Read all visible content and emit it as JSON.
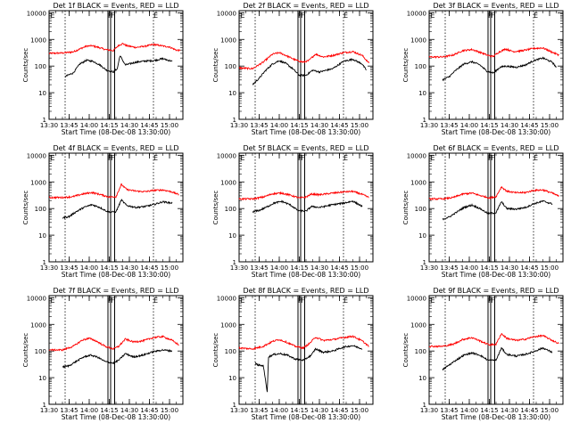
{
  "chart_data": {
    "type": "line",
    "layout": "3x3 grid",
    "x_range": [
      "13:30",
      "15:10"
    ],
    "x_ticks": [
      "13:30",
      "13:45",
      "14:00",
      "14:15",
      "14:30",
      "14:45",
      "15:00"
    ],
    "xlabel": "Start Time (08-Dec-08 13:30:00)",
    "ylabel": "Counts/sec",
    "y_scale": "log",
    "ylim": [
      1,
      12000
    ],
    "y_ticks": [
      "1",
      "10",
      "100",
      "1000",
      "10000"
    ],
    "series_colors": {
      "events": "#000000",
      "lld": "#ff0000"
    },
    "markers": {
      "dotted": [
        "13:42",
        "14:48"
      ],
      "solid": [
        "14:14",
        "14:16",
        "14:19"
      ],
      "labels": [
        {
          "text": "E",
          "at": "13:31"
        },
        {
          "text": "F",
          "at": "14:14"
        },
        {
          "text": "F",
          "at": "14:16"
        },
        {
          "text": "E",
          "at": "14:48"
        }
      ]
    },
    "panels": [
      {
        "title": "Det 1f BLACK = Events, RED = LLD",
        "lld": [
          [
            "13:30",
            300
          ],
          [
            "13:40",
            310
          ],
          [
            "13:48",
            340
          ],
          [
            "13:52",
            420
          ],
          [
            "13:58",
            560
          ],
          [
            "14:02",
            580
          ],
          [
            "14:07",
            500
          ],
          [
            "14:12",
            420
          ],
          [
            "14:18",
            380
          ],
          [
            "14:22",
            600
          ],
          [
            "14:25",
            700
          ],
          [
            "14:28",
            580
          ],
          [
            "14:35",
            500
          ],
          [
            "14:42",
            560
          ],
          [
            "14:48",
            650
          ],
          [
            "14:52",
            600
          ],
          [
            "15:00",
            520
          ],
          [
            "15:05",
            400
          ],
          [
            "15:08",
            380
          ]
        ],
        "events": [
          [
            "13:42",
            40
          ],
          [
            "13:44",
            45
          ],
          [
            "13:48",
            55
          ],
          [
            "13:53",
            120
          ],
          [
            "13:58",
            165
          ],
          [
            "14:03",
            150
          ],
          [
            "14:08",
            110
          ],
          [
            "14:13",
            70
          ],
          [
            "14:18",
            60
          ],
          [
            "14:21",
            80
          ],
          [
            "14:23",
            250
          ],
          [
            "14:27",
            110
          ],
          [
            "14:35",
            140
          ],
          [
            "14:42",
            155
          ],
          [
            "14:48",
            160
          ],
          [
            "14:55",
            190
          ],
          [
            "15:02",
            150
          ]
        ]
      },
      {
        "title": "Det 2f BLACK = Events, RED = LLD",
        "lld": [
          [
            "13:30",
            85
          ],
          [
            "13:40",
            80
          ],
          [
            "13:48",
            140
          ],
          [
            "13:55",
            280
          ],
          [
            "14:00",
            320
          ],
          [
            "14:05",
            250
          ],
          [
            "14:12",
            170
          ],
          [
            "14:18",
            140
          ],
          [
            "14:22",
            160
          ],
          [
            "14:27",
            280
          ],
          [
            "14:33",
            220
          ],
          [
            "14:40",
            250
          ],
          [
            "14:48",
            320
          ],
          [
            "14:55",
            350
          ],
          [
            "15:02",
            250
          ],
          [
            "15:07",
            130
          ]
        ],
        "events": [
          [
            "13:40",
            20
          ],
          [
            "13:45",
            35
          ],
          [
            "13:50",
            70
          ],
          [
            "13:55",
            120
          ],
          [
            "14:00",
            160
          ],
          [
            "14:05",
            125
          ],
          [
            "14:10",
            80
          ],
          [
            "14:15",
            45
          ],
          [
            "14:20",
            45
          ],
          [
            "14:25",
            70
          ],
          [
            "14:30",
            60
          ],
          [
            "14:40",
            80
          ],
          [
            "14:48",
            150
          ],
          [
            "14:55",
            180
          ],
          [
            "15:02",
            120
          ],
          [
            "15:05",
            70
          ]
        ]
      },
      {
        "title": "Det 3f BLACK = Events, RED = LLD",
        "lld": [
          [
            "13:30",
            220
          ],
          [
            "13:40",
            220
          ],
          [
            "13:48",
            260
          ],
          [
            "13:55",
            380
          ],
          [
            "14:02",
            420
          ],
          [
            "14:08",
            330
          ],
          [
            "14:14",
            250
          ],
          [
            "14:18",
            230
          ],
          [
            "14:22",
            330
          ],
          [
            "14:27",
            440
          ],
          [
            "14:33",
            350
          ],
          [
            "14:40",
            380
          ],
          [
            "14:48",
            460
          ],
          [
            "14:55",
            480
          ],
          [
            "15:02",
            330
          ],
          [
            "15:07",
            260
          ]
        ],
        "events": [
          [
            "13:40",
            30
          ],
          [
            "13:45",
            40
          ],
          [
            "13:50",
            70
          ],
          [
            "13:56",
            120
          ],
          [
            "14:02",
            145
          ],
          [
            "14:08",
            110
          ],
          [
            "14:13",
            65
          ],
          [
            "14:18",
            55
          ],
          [
            "14:23",
            90
          ],
          [
            "14:27",
            100
          ],
          [
            "14:35",
            90
          ],
          [
            "14:42",
            110
          ],
          [
            "14:48",
            160
          ],
          [
            "14:55",
            200
          ],
          [
            "15:02",
            140
          ],
          [
            "15:05",
            90
          ]
        ]
      },
      {
        "title": "Det 4f BLACK = Events, RED = LLD",
        "lld": [
          [
            "13:30",
            260
          ],
          [
            "13:40",
            260
          ],
          [
            "13:48",
            280
          ],
          [
            "13:55",
            350
          ],
          [
            "14:02",
            400
          ],
          [
            "14:08",
            340
          ],
          [
            "14:15",
            270
          ],
          [
            "14:20",
            280
          ],
          [
            "14:24",
            800
          ],
          [
            "14:28",
            520
          ],
          [
            "14:35",
            450
          ],
          [
            "14:42",
            430
          ],
          [
            "14:48",
            480
          ],
          [
            "14:55",
            500
          ],
          [
            "15:02",
            420
          ],
          [
            "15:07",
            330
          ]
        ],
        "events": [
          [
            "13:40",
            45
          ],
          [
            "13:45",
            50
          ],
          [
            "13:50",
            75
          ],
          [
            "13:56",
            110
          ],
          [
            "14:02",
            140
          ],
          [
            "14:08",
            110
          ],
          [
            "14:14",
            75
          ],
          [
            "14:20",
            75
          ],
          [
            "14:24",
            210
          ],
          [
            "14:28",
            130
          ],
          [
            "14:35",
            110
          ],
          [
            "14:42",
            120
          ],
          [
            "14:48",
            140
          ],
          [
            "14:55",
            180
          ],
          [
            "15:02",
            160
          ]
        ]
      },
      {
        "title": "Det 5f BLACK = Events, RED = LLD",
        "lld": [
          [
            "13:30",
            230
          ],
          [
            "13:40",
            230
          ],
          [
            "13:48",
            270
          ],
          [
            "13:55",
            360
          ],
          [
            "14:02",
            380
          ],
          [
            "14:08",
            320
          ],
          [
            "14:15",
            250
          ],
          [
            "14:20",
            270
          ],
          [
            "14:24",
            350
          ],
          [
            "14:30",
            330
          ],
          [
            "14:40",
            380
          ],
          [
            "14:48",
            420
          ],
          [
            "14:55",
            440
          ],
          [
            "15:02",
            340
          ],
          [
            "15:07",
            260
          ]
        ],
        "events": [
          [
            "13:40",
            75
          ],
          [
            "13:45",
            85
          ],
          [
            "13:50",
            110
          ],
          [
            "13:56",
            160
          ],
          [
            "14:02",
            185
          ],
          [
            "14:08",
            140
          ],
          [
            "14:14",
            85
          ],
          [
            "14:20",
            80
          ],
          [
            "14:24",
            120
          ],
          [
            "14:30",
            110
          ],
          [
            "14:40",
            140
          ],
          [
            "14:48",
            160
          ],
          [
            "14:55",
            190
          ],
          [
            "15:02",
            120
          ]
        ]
      },
      {
        "title": "Det 6f BLACK = Events, RED = LLD",
        "lld": [
          [
            "13:30",
            230
          ],
          [
            "13:40",
            230
          ],
          [
            "13:48",
            260
          ],
          [
            "13:55",
            350
          ],
          [
            "14:02",
            380
          ],
          [
            "14:08",
            310
          ],
          [
            "14:15",
            250
          ],
          [
            "14:20",
            280
          ],
          [
            "14:24",
            650
          ],
          [
            "14:28",
            450
          ],
          [
            "14:35",
            390
          ],
          [
            "14:42",
            400
          ],
          [
            "14:48",
            480
          ],
          [
            "14:55",
            500
          ],
          [
            "15:02",
            380
          ],
          [
            "15:07",
            290
          ]
        ],
        "events": [
          [
            "13:40",
            40
          ],
          [
            "13:45",
            48
          ],
          [
            "13:50",
            70
          ],
          [
            "13:56",
            110
          ],
          [
            "14:02",
            135
          ],
          [
            "14:08",
            100
          ],
          [
            "14:14",
            65
          ],
          [
            "14:20",
            70
          ],
          [
            "14:24",
            180
          ],
          [
            "14:28",
            100
          ],
          [
            "14:35",
            95
          ],
          [
            "14:42",
            110
          ],
          [
            "14:48",
            150
          ],
          [
            "14:55",
            190
          ],
          [
            "15:02",
            150
          ]
        ]
      },
      {
        "title": "Det 7f BLACK = Events, RED = LLD",
        "lld": [
          [
            "13:30",
            110
          ],
          [
            "13:40",
            110
          ],
          [
            "13:48",
            150
          ],
          [
            "13:55",
            260
          ],
          [
            "14:00",
            300
          ],
          [
            "14:05",
            240
          ],
          [
            "14:12",
            150
          ],
          [
            "14:18",
            120
          ],
          [
            "14:22",
            150
          ],
          [
            "14:27",
            280
          ],
          [
            "14:33",
            220
          ],
          [
            "14:40",
            240
          ],
          [
            "14:48",
            320
          ],
          [
            "14:55",
            350
          ],
          [
            "15:02",
            250
          ],
          [
            "15:07",
            170
          ]
        ],
        "events": [
          [
            "13:40",
            25
          ],
          [
            "13:45",
            28
          ],
          [
            "13:50",
            40
          ],
          [
            "13:56",
            60
          ],
          [
            "14:01",
            70
          ],
          [
            "14:06",
            60
          ],
          [
            "14:12",
            40
          ],
          [
            "14:18",
            35
          ],
          [
            "14:22",
            45
          ],
          [
            "14:27",
            80
          ],
          [
            "14:33",
            60
          ],
          [
            "14:40",
            70
          ],
          [
            "14:48",
            95
          ],
          [
            "14:55",
            110
          ],
          [
            "15:02",
            100
          ]
        ]
      },
      {
        "title": "Det 8f BLACK = Events, RED = LLD",
        "lld": [
          [
            "13:30",
            130
          ],
          [
            "13:40",
            120
          ],
          [
            "13:48",
            150
          ],
          [
            "13:55",
            230
          ],
          [
            "14:00",
            270
          ],
          [
            "14:05",
            220
          ],
          [
            "14:12",
            150
          ],
          [
            "14:18",
            130
          ],
          [
            "14:23",
            200
          ],
          [
            "14:27",
            330
          ],
          [
            "14:33",
            250
          ],
          [
            "14:40",
            270
          ],
          [
            "14:48",
            320
          ],
          [
            "14:55",
            360
          ],
          [
            "15:02",
            240
          ],
          [
            "15:07",
            150
          ]
        ],
        "events": [
          [
            "13:42",
            35
          ],
          [
            "13:44",
            30
          ],
          [
            "13:47",
            28
          ],
          [
            "13:48",
            30
          ],
          [
            "13:51",
            3
          ],
          [
            "13:52",
            60
          ],
          [
            "13:56",
            75
          ],
          [
            "14:01",
            80
          ],
          [
            "14:06",
            70
          ],
          [
            "14:12",
            50
          ],
          [
            "14:18",
            45
          ],
          [
            "14:24",
            70
          ],
          [
            "14:27",
            120
          ],
          [
            "14:33",
            90
          ],
          [
            "14:40",
            100
          ],
          [
            "14:48",
            140
          ],
          [
            "14:55",
            160
          ],
          [
            "15:02",
            120
          ]
        ]
      },
      {
        "title": "Det 9f BLACK = Events, RED = LLD",
        "lld": [
          [
            "13:30",
            150
          ],
          [
            "13:40",
            150
          ],
          [
            "13:48",
            180
          ],
          [
            "13:55",
            270
          ],
          [
            "14:02",
            320
          ],
          [
            "14:08",
            240
          ],
          [
            "14:15",
            170
          ],
          [
            "14:20",
            180
          ],
          [
            "14:24",
            450
          ],
          [
            "14:28",
            300
          ],
          [
            "14:35",
            250
          ],
          [
            "14:42",
            280
          ],
          [
            "14:48",
            340
          ],
          [
            "14:55",
            380
          ],
          [
            "15:02",
            250
          ],
          [
            "15:07",
            190
          ]
        ],
        "events": [
          [
            "13:40",
            20
          ],
          [
            "13:45",
            30
          ],
          [
            "13:50",
            45
          ],
          [
            "13:56",
            70
          ],
          [
            "14:02",
            85
          ],
          [
            "14:08",
            70
          ],
          [
            "14:14",
            45
          ],
          [
            "14:20",
            45
          ],
          [
            "14:24",
            130
          ],
          [
            "14:28",
            75
          ],
          [
            "14:35",
            65
          ],
          [
            "14:42",
            75
          ],
          [
            "14:48",
            95
          ],
          [
            "14:55",
            130
          ],
          [
            "15:02",
            90
          ]
        ]
      }
    ]
  }
}
